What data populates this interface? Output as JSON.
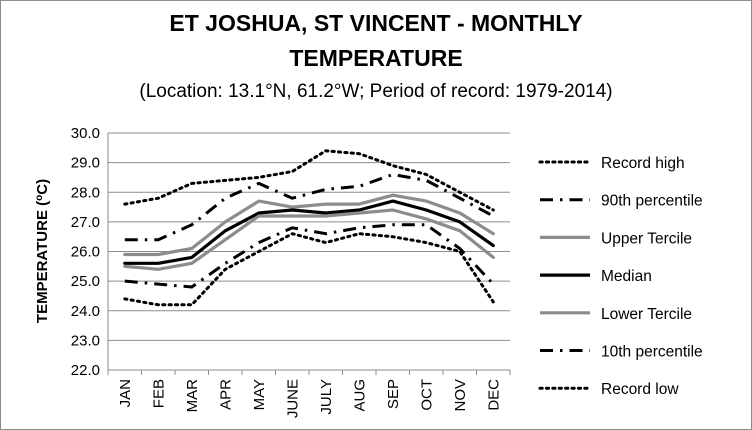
{
  "chart_data": {
    "type": "line",
    "title_line1": "ET JOSHUA, ST VINCENT - MONTHLY",
    "title_line2": "TEMPERATURE",
    "subtitle": "(Location: 13.1°N, 61.2°W; Period of record: 1979-2014)",
    "xlabel": "",
    "ylabel_main": "TEMPERATURE (",
    "ylabel_sup": "o",
    "ylabel_end": "C)",
    "ylim": [
      22.0,
      30.0
    ],
    "y_ticks": [
      "22.0",
      "23.0",
      "24.0",
      "25.0",
      "26.0",
      "27.0",
      "28.0",
      "29.0",
      "30.0"
    ],
    "grid": true,
    "legend_position": "right",
    "categories": [
      "JAN",
      "FEB",
      "MAR",
      "APR",
      "MAY",
      "JUNE",
      "JULY",
      "AUG",
      "SEP",
      "OCT",
      "NOV",
      "DEC"
    ],
    "series": [
      {
        "name": "Record high",
        "style": "dot",
        "color": "#000000",
        "values": [
          27.6,
          27.8,
          28.3,
          28.4,
          28.5,
          28.7,
          29.4,
          29.3,
          28.9,
          28.6,
          28.0,
          27.4
        ]
      },
      {
        "name": "90th percentile",
        "style": "dashdot",
        "color": "#000000",
        "values": [
          26.4,
          26.4,
          26.9,
          27.8,
          28.3,
          27.8,
          28.1,
          28.2,
          28.6,
          28.4,
          27.8,
          27.2
        ]
      },
      {
        "name": "Upper Tercile",
        "style": "solid",
        "color": "#8c8c8c",
        "values": [
          25.9,
          25.9,
          26.1,
          27.0,
          27.7,
          27.5,
          27.6,
          27.6,
          27.9,
          27.7,
          27.3,
          26.6
        ]
      },
      {
        "name": "Median",
        "style": "solid",
        "color": "#000000",
        "values": [
          25.6,
          25.6,
          25.8,
          26.7,
          27.3,
          27.4,
          27.3,
          27.4,
          27.7,
          27.4,
          27.0,
          26.2
        ]
      },
      {
        "name": "Lower Tercile",
        "style": "solid",
        "color": "#8c8c8c",
        "values": [
          25.5,
          25.4,
          25.6,
          26.4,
          27.2,
          27.2,
          27.2,
          27.3,
          27.4,
          27.1,
          26.7,
          25.8
        ]
      },
      {
        "name": "10th percentile",
        "style": "dashdot",
        "color": "#000000",
        "values": [
          25.0,
          24.9,
          24.8,
          25.6,
          26.3,
          26.8,
          26.6,
          26.8,
          26.9,
          26.9,
          26.1,
          24.9
        ]
      },
      {
        "name": "Record low",
        "style": "dot",
        "color": "#000000",
        "values": [
          24.4,
          24.2,
          24.2,
          25.4,
          26.0,
          26.6,
          26.3,
          26.6,
          26.5,
          26.3,
          26.0,
          24.3
        ]
      }
    ]
  }
}
